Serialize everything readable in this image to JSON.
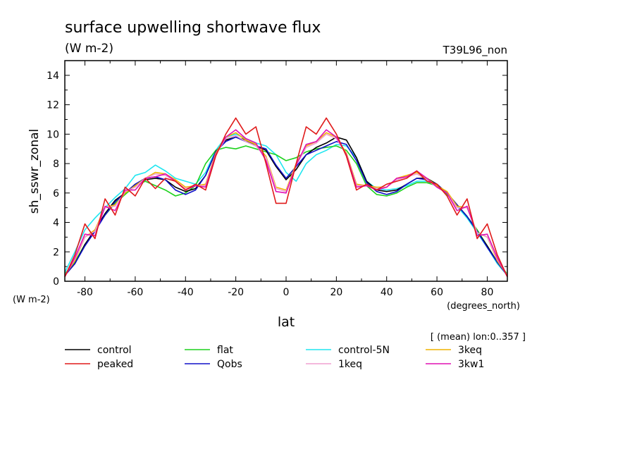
{
  "chart_data": {
    "type": "line",
    "title": "surface upwelling shortwave flux",
    "units": "(W m-2)",
    "run_label": "T39L96_non",
    "ylabel": "sh_sswr_zonal",
    "y_units": "(W m-2)",
    "xlabel": "lat",
    "x_units": "(degrees_north)",
    "subset_note": "[ (mean) lon:0..357 ]",
    "xlim": [
      -88,
      88
    ],
    "ylim": [
      0,
      15
    ],
    "x_ticks": [
      -80,
      -60,
      -40,
      -20,
      0,
      20,
      40,
      60,
      80
    ],
    "y_ticks": [
      0,
      2,
      4,
      6,
      8,
      10,
      12,
      14
    ],
    "legend_placement": "bottom",
    "x": [
      -88,
      -84,
      -80,
      -76,
      -72,
      -68,
      -64,
      -60,
      -56,
      -52,
      -48,
      -44,
      -40,
      -36,
      -32,
      -28,
      -24,
      -20,
      -16,
      -12,
      -8,
      -4,
      0,
      4,
      8,
      12,
      16,
      20,
      24,
      28,
      32,
      36,
      40,
      44,
      48,
      52,
      56,
      60,
      64,
      68,
      72,
      76,
      80,
      84,
      88
    ],
    "series": [
      {
        "name": "control",
        "color": "#000000",
        "values": [
          0.4,
          1.2,
          2.5,
          3.5,
          4.6,
          5.5,
          6.0,
          6.6,
          6.9,
          7.0,
          6.9,
          6.4,
          6.1,
          6.3,
          7.2,
          8.8,
          9.6,
          9.8,
          9.6,
          9.2,
          8.9,
          7.8,
          6.9,
          7.6,
          8.6,
          9.1,
          9.4,
          9.8,
          9.6,
          8.4,
          6.8,
          6.2,
          6.1,
          6.2,
          6.6,
          7.0,
          7.0,
          6.6,
          6.0,
          5.2,
          4.4,
          3.4,
          2.4,
          1.3,
          0.4
        ]
      },
      {
        "name": "peaked",
        "color": "#e01a1a",
        "values": [
          0.3,
          1.8,
          3.9,
          2.9,
          5.6,
          4.5,
          6.4,
          5.8,
          7.0,
          6.3,
          7.0,
          6.8,
          6.2,
          6.6,
          6.2,
          8.5,
          10.0,
          11.1,
          10.0,
          10.5,
          8.0,
          5.3,
          5.3,
          8.0,
          10.5,
          10.0,
          11.1,
          10.0,
          8.5,
          6.2,
          6.6,
          6.2,
          6.6,
          6.8,
          7.0,
          7.5,
          6.8,
          6.6,
          5.8,
          4.5,
          5.6,
          2.9,
          3.9,
          1.8,
          0.3
        ]
      },
      {
        "name": "flat",
        "color": "#1ed21e",
        "values": [
          0.5,
          1.3,
          2.5,
          3.5,
          4.5,
          5.3,
          5.9,
          6.5,
          6.8,
          6.5,
          6.2,
          5.8,
          6.0,
          6.5,
          8.0,
          8.9,
          9.1,
          9.0,
          9.2,
          9.0,
          8.8,
          8.6,
          8.2,
          8.4,
          8.8,
          9.0,
          9.1,
          9.2,
          8.9,
          8.0,
          6.5,
          5.9,
          5.8,
          6.0,
          6.4,
          6.7,
          6.7,
          6.5,
          5.9,
          5.2,
          4.4,
          3.5,
          2.4,
          1.3,
          0.5
        ]
      },
      {
        "name": "Qobs",
        "color": "#1010c8",
        "values": [
          0.4,
          1.2,
          2.4,
          3.4,
          4.5,
          5.4,
          6.0,
          6.6,
          7.0,
          7.1,
          6.9,
          6.2,
          5.9,
          6.2,
          7.2,
          8.8,
          9.5,
          9.8,
          9.5,
          9.2,
          9.0,
          7.9,
          7.0,
          7.8,
          8.6,
          8.9,
          9.2,
          9.5,
          9.3,
          8.2,
          6.7,
          6.1,
          5.9,
          6.1,
          6.6,
          7.0,
          6.9,
          6.6,
          6.0,
          5.2,
          4.4,
          3.4,
          2.3,
          1.3,
          0.4
        ]
      },
      {
        "name": "control-5N",
        "color": "#20e6f0",
        "values": [
          0.6,
          2.0,
          3.5,
          4.3,
          5.0,
          5.7,
          6.3,
          7.2,
          7.4,
          7.9,
          7.5,
          7.0,
          6.8,
          6.6,
          7.4,
          8.9,
          9.8,
          10.0,
          9.7,
          9.4,
          9.2,
          8.6,
          7.4,
          6.8,
          8.0,
          8.6,
          8.9,
          9.3,
          9.2,
          8.4,
          6.8,
          6.3,
          6.2,
          6.3,
          6.5,
          6.8,
          6.8,
          6.5,
          6.0,
          5.1,
          4.3,
          3.3,
          2.3,
          1.2,
          0.4
        ]
      },
      {
        "name": "3keq",
        "color": "#f0b400",
        "values": [
          0.4,
          1.4,
          3.0,
          3.5,
          5.0,
          5.2,
          6.0,
          6.5,
          7.0,
          7.4,
          7.3,
          6.9,
          6.4,
          6.5,
          6.6,
          8.7,
          9.8,
          10.1,
          9.6,
          9.3,
          8.5,
          6.4,
          6.2,
          8.0,
          9.2,
          9.5,
          10.1,
          9.8,
          8.7,
          6.6,
          6.5,
          6.4,
          6.4,
          7.0,
          7.2,
          7.4,
          7.0,
          6.5,
          6.1,
          5.1,
          5.0,
          3.3,
          3.0,
          1.4,
          0.4
        ]
      },
      {
        "name": "1keq",
        "color": "#f0a0d0",
        "values": [
          0.4,
          1.5,
          3.0,
          3.4,
          5.0,
          5.1,
          6.1,
          6.4,
          7.0,
          7.3,
          7.2,
          6.8,
          6.3,
          6.5,
          6.5,
          8.6,
          9.7,
          9.9,
          9.5,
          9.2,
          8.4,
          6.3,
          6.1,
          7.9,
          9.1,
          9.4,
          10.0,
          9.7,
          8.6,
          6.5,
          6.5,
          6.3,
          6.4,
          6.9,
          7.1,
          7.3,
          6.9,
          6.4,
          6.0,
          5.0,
          5.0,
          3.3,
          3.0,
          1.5,
          0.4
        ]
      },
      {
        "name": "3kw1",
        "color": "#e010b4",
        "values": [
          0.3,
          1.6,
          3.2,
          3.1,
          5.1,
          4.8,
          6.2,
          6.2,
          7.0,
          7.1,
          7.3,
          6.8,
          6.2,
          6.5,
          6.4,
          8.6,
          9.8,
          10.3,
          9.7,
          9.4,
          8.2,
          6.1,
          6.0,
          7.9,
          9.3,
          9.5,
          10.3,
          9.8,
          8.6,
          6.4,
          6.5,
          6.2,
          6.4,
          7.0,
          7.1,
          7.5,
          7.0,
          6.4,
          6.0,
          4.8,
          5.1,
          3.1,
          3.2,
          1.6,
          0.3
        ]
      }
    ]
  }
}
